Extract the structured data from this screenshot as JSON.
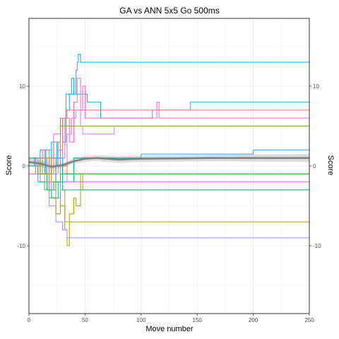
{
  "chart_data": {
    "type": "line",
    "title": "GA vs ANN 5x5 Go 500ms",
    "xlabel": "Move number",
    "ylabel_left": "Score",
    "ylabel_right": "Score",
    "xlim": [
      0,
      250
    ],
    "ylim": [
      -18.5,
      18.5
    ],
    "x_ticks": [
      "0",
      "50",
      "100",
      "150",
      "200",
      "250"
    ],
    "x_tick_values": [
      0,
      50,
      100,
      150,
      200,
      250
    ],
    "y_ticks": [
      "-10",
      "0",
      "10"
    ],
    "y_tick_values": [
      -10,
      0,
      10
    ],
    "grid": true,
    "legend": "none",
    "series": [
      {
        "color": "#00A9FF",
        "points": [
          [
            0,
            1
          ],
          [
            5,
            0
          ],
          [
            10,
            2
          ],
          [
            15,
            -1
          ],
          [
            20,
            3
          ],
          [
            25,
            1
          ],
          [
            28,
            5
          ],
          [
            30,
            3
          ],
          [
            33,
            7
          ],
          [
            36,
            9
          ],
          [
            38,
            11
          ],
          [
            40,
            9
          ],
          [
            42,
            12
          ],
          [
            43,
            13
          ],
          [
            44,
            14
          ],
          [
            46,
            13
          ],
          [
            250,
            13
          ]
        ]
      },
      {
        "color": "#00BFC4",
        "points": [
          [
            0,
            0
          ],
          [
            5,
            1
          ],
          [
            10,
            -1
          ],
          [
            15,
            2
          ],
          [
            20,
            0
          ],
          [
            25,
            3
          ],
          [
            28,
            6
          ],
          [
            30,
            5
          ],
          [
            33,
            9
          ],
          [
            50,
            9
          ],
          [
            52,
            8
          ],
          [
            62,
            8
          ],
          [
            64,
            6
          ],
          [
            108,
            6
          ],
          [
            110,
            7
          ],
          [
            142,
            7
          ],
          [
            144,
            8
          ],
          [
            250,
            8
          ]
        ]
      },
      {
        "color": "#F8766D",
        "points": [
          [
            0,
            1
          ],
          [
            8,
            0
          ],
          [
            12,
            2
          ],
          [
            18,
            -1
          ],
          [
            22,
            3
          ],
          [
            26,
            2
          ],
          [
            30,
            6
          ],
          [
            34,
            7
          ],
          [
            250,
            7
          ]
        ]
      },
      {
        "color": "#FF61CC",
        "points": [
          [
            0,
            0
          ],
          [
            6,
            1
          ],
          [
            10,
            -1
          ],
          [
            14,
            2
          ],
          [
            18,
            0
          ],
          [
            22,
            4
          ],
          [
            28,
            1
          ],
          [
            32,
            6
          ],
          [
            36,
            3
          ],
          [
            40,
            8
          ],
          [
            43,
            11
          ],
          [
            46,
            7
          ],
          [
            48,
            10
          ],
          [
            50,
            6
          ],
          [
            112,
            6
          ],
          [
            114,
            8
          ],
          [
            116,
            6
          ],
          [
            250,
            6
          ]
        ]
      },
      {
        "color": "#C77CFF",
        "points": [
          [
            0,
            -1
          ],
          [
            6,
            0
          ],
          [
            10,
            -2
          ],
          [
            16,
            1
          ],
          [
            20,
            -1
          ],
          [
            26,
            2
          ],
          [
            30,
            -2
          ],
          [
            34,
            4
          ],
          [
            38,
            6
          ],
          [
            42,
            7
          ],
          [
            46,
            5
          ],
          [
            48,
            4
          ],
          [
            74,
            4
          ],
          [
            76,
            5
          ],
          [
            250,
            5
          ]
        ]
      },
      {
        "color": "#7CAE00",
        "points": [
          [
            0,
            0
          ],
          [
            8,
            1
          ],
          [
            12,
            -1
          ],
          [
            18,
            1
          ],
          [
            24,
            -2
          ],
          [
            28,
            5
          ],
          [
            30,
            5
          ],
          [
            250,
            5
          ]
        ]
      },
      {
        "color": "#35A2FF",
        "points": [
          [
            0,
            0
          ],
          [
            10,
            -1
          ],
          [
            20,
            1
          ],
          [
            30,
            -1
          ],
          [
            40,
            1
          ],
          [
            60,
            1
          ],
          [
            100,
            1.5
          ],
          [
            200,
            2
          ],
          [
            250,
            2
          ]
        ]
      },
      {
        "color": "#E58700",
        "points": [
          [
            0,
            0
          ],
          [
            10,
            1
          ],
          [
            20,
            -2
          ],
          [
            28,
            0
          ],
          [
            34,
            -1
          ],
          [
            250,
            -1
          ]
        ]
      },
      {
        "color": "#00BF7D",
        "points": [
          [
            0,
            1
          ],
          [
            10,
            -1
          ],
          [
            18,
            -3
          ],
          [
            24,
            0
          ],
          [
            30,
            -2
          ],
          [
            40,
            1
          ],
          [
            250,
            1
          ]
        ]
      },
      {
        "color": "#00BA38",
        "points": [
          [
            0,
            0
          ],
          [
            8,
            -1
          ],
          [
            16,
            -3
          ],
          [
            22,
            -2
          ],
          [
            28,
            -1
          ],
          [
            120,
            -1
          ],
          [
            250,
            -1
          ]
        ]
      },
      {
        "color": "#E76BF3",
        "points": [
          [
            0,
            -1
          ],
          [
            8,
            1
          ],
          [
            14,
            -2
          ],
          [
            20,
            -4
          ],
          [
            28,
            -2
          ],
          [
            116,
            -2
          ],
          [
            250,
            -2
          ]
        ]
      },
      {
        "color": "#A3A500",
        "points": [
          [
            0,
            0
          ],
          [
            10,
            -1
          ],
          [
            18,
            -4
          ],
          [
            24,
            -6
          ],
          [
            28,
            -3
          ],
          [
            32,
            -8
          ],
          [
            34,
            -10
          ],
          [
            36,
            -6
          ],
          [
            40,
            -4
          ],
          [
            42,
            -5
          ],
          [
            46,
            -1
          ],
          [
            48,
            -3
          ],
          [
            250,
            -3
          ]
        ]
      },
      {
        "color": "#9590FF",
        "points": [
          [
            0,
            0
          ],
          [
            10,
            -2
          ],
          [
            18,
            -5
          ],
          [
            24,
            -7
          ],
          [
            30,
            -8
          ],
          [
            34,
            -9
          ],
          [
            250,
            -9
          ]
        ]
      },
      {
        "color": "#B79F00",
        "points": [
          [
            0,
            0
          ],
          [
            10,
            -1
          ],
          [
            18,
            -3
          ],
          [
            24,
            -6
          ],
          [
            28,
            -5
          ],
          [
            32,
            -7
          ],
          [
            250,
            -7
          ]
        ]
      },
      {
        "color": "#00C08B",
        "points": [
          [
            0,
            0
          ],
          [
            8,
            -2
          ],
          [
            14,
            -3
          ],
          [
            20,
            -4
          ],
          [
            26,
            -2
          ],
          [
            30,
            -3
          ],
          [
            40,
            -3
          ],
          [
            250,
            -3
          ]
        ]
      }
    ],
    "smooth": {
      "color": "#7f7f7f",
      "band_color": "#cccccc",
      "points": [
        [
          0,
          0.5
        ],
        [
          10,
          0.3
        ],
        [
          20,
          -0.1
        ],
        [
          30,
          0.1
        ],
        [
          40,
          0.6
        ],
        [
          50,
          0.9
        ],
        [
          60,
          1.0
        ],
        [
          70,
          0.9
        ],
        [
          80,
          0.8
        ],
        [
          90,
          0.85
        ],
        [
          100,
          0.9
        ],
        [
          130,
          0.95
        ],
        [
          160,
          1.0
        ],
        [
          200,
          1.0
        ],
        [
          250,
          1.0
        ]
      ],
      "band": [
        0.6,
        0.4,
        0.3,
        0.3,
        0.3,
        0.35,
        0.35,
        0.4,
        0.4,
        0.4,
        0.4,
        0.4,
        0.4,
        0.45,
        0.5
      ]
    }
  }
}
